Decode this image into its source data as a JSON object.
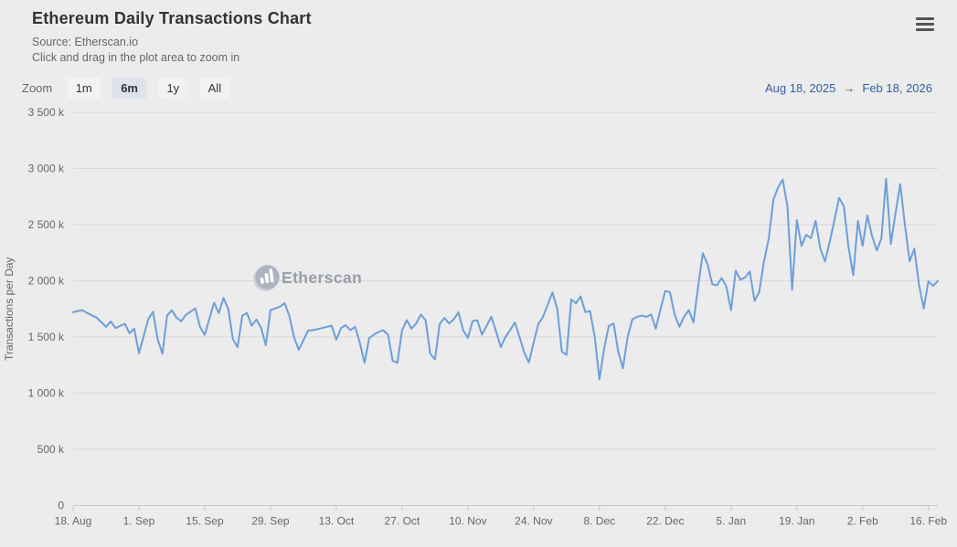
{
  "header": {
    "title": "Ethereum Daily Transactions Chart",
    "subtitle_source": "Source: Etherscan.io",
    "subtitle_hint": "Click and drag in the plot area to zoom in"
  },
  "controls": {
    "zoom_label": "Zoom",
    "buttons": [
      {
        "label": "1m",
        "selected": false
      },
      {
        "label": "6m",
        "selected": true
      },
      {
        "label": "1y",
        "selected": false
      },
      {
        "label": "All",
        "selected": false
      }
    ],
    "range": {
      "from": "Aug 18, 2025",
      "arrow": "→",
      "to": "Feb 18, 2026"
    }
  },
  "watermark": {
    "text": "Etherscan",
    "icon": "etherscan-logo-icon"
  },
  "colors": {
    "background": "#ececec",
    "line": "#6d9eda",
    "gridline": "#d9d9d9",
    "axis_line": "#c8c8c8",
    "range_date": "#35609f",
    "button_selected_bg": "#dce2ee",
    "button_bg": "#f2f2f2",
    "watermark": "#989ea9"
  },
  "chart_data": {
    "type": "line",
    "title": "Ethereum Daily Transactions Chart",
    "xlabel": "",
    "ylabel": "Transactions per Day",
    "x_start_date": "2025-08-18",
    "x_end_date": "2026-02-18",
    "x_span_days": 184,
    "ylim_k": [
      0,
      3500
    ],
    "y_unit": "k (thousands of transactions per day)",
    "grid": "horizontal gridlines only",
    "legend": "none",
    "y_ticks": [
      {
        "label": "0",
        "value_k": 0
      },
      {
        "label": "500 k",
        "value_k": 500
      },
      {
        "label": "1 000 k",
        "value_k": 1000
      },
      {
        "label": "1 500 k",
        "value_k": 1500
      },
      {
        "label": "2 000 k",
        "value_k": 2000
      },
      {
        "label": "2 500 k",
        "value_k": 2500
      },
      {
        "label": "3 000 k",
        "value_k": 3000
      },
      {
        "label": "3 500 k",
        "value_k": 3500
      }
    ],
    "x_ticks": [
      {
        "label": "18. Aug",
        "day": 0
      },
      {
        "label": "1. Sep",
        "day": 14
      },
      {
        "label": "15. Sep",
        "day": 28
      },
      {
        "label": "29. Sep",
        "day": 42
      },
      {
        "label": "13. Oct",
        "day": 56
      },
      {
        "label": "27. Oct",
        "day": 70
      },
      {
        "label": "10. Nov",
        "day": 84
      },
      {
        "label": "24. Nov",
        "day": 98
      },
      {
        "label": "8. Dec",
        "day": 112
      },
      {
        "label": "22. Dec",
        "day": 126
      },
      {
        "label": "5. Jan",
        "day": 140
      },
      {
        "label": "19. Jan",
        "day": 154
      },
      {
        "label": "2. Feb",
        "day": 168
      },
      {
        "label": "16. Feb",
        "day": 182
      }
    ],
    "series": [
      {
        "name": "Transactions per Day",
        "color": "#6d9eda",
        "x_unit": "days since 2025-08-18",
        "points_day_valueK": [
          [
            0,
            1720
          ],
          [
            1,
            1732
          ],
          [
            2,
            1738
          ],
          [
            3,
            1713
          ],
          [
            5,
            1672
          ],
          [
            7,
            1590
          ],
          [
            8,
            1638
          ],
          [
            9,
            1580
          ],
          [
            11,
            1618
          ],
          [
            12,
            1533
          ],
          [
            13,
            1574
          ],
          [
            14,
            1355
          ],
          [
            16,
            1660
          ],
          [
            17,
            1724
          ],
          [
            18,
            1480
          ],
          [
            19,
            1350
          ],
          [
            20,
            1690
          ],
          [
            21,
            1738
          ],
          [
            22,
            1672
          ],
          [
            23,
            1640
          ],
          [
            24,
            1697
          ],
          [
            26,
            1754
          ],
          [
            27,
            1590
          ],
          [
            28,
            1519
          ],
          [
            30,
            1806
          ],
          [
            31,
            1713
          ],
          [
            32,
            1847
          ],
          [
            33,
            1750
          ],
          [
            34,
            1480
          ],
          [
            35,
            1410
          ],
          [
            36,
            1690
          ],
          [
            37,
            1713
          ],
          [
            38,
            1600
          ],
          [
            39,
            1656
          ],
          [
            40,
            1580
          ],
          [
            41,
            1426
          ],
          [
            42,
            1738
          ],
          [
            44,
            1770
          ],
          [
            45,
            1800
          ],
          [
            46,
            1690
          ],
          [
            47,
            1500
          ],
          [
            48,
            1385
          ],
          [
            50,
            1557
          ],
          [
            51,
            1560
          ],
          [
            53,
            1580
          ],
          [
            55,
            1600
          ],
          [
            56,
            1475
          ],
          [
            57,
            1580
          ],
          [
            58,
            1605
          ],
          [
            59,
            1560
          ],
          [
            60,
            1590
          ],
          [
            61,
            1450
          ],
          [
            62,
            1270
          ],
          [
            63,
            1490
          ],
          [
            64,
            1520
          ],
          [
            65,
            1545
          ],
          [
            66,
            1560
          ],
          [
            67,
            1520
          ],
          [
            68,
            1287
          ],
          [
            69,
            1270
          ],
          [
            70,
            1560
          ],
          [
            71,
            1650
          ],
          [
            72,
            1574
          ],
          [
            73,
            1620
          ],
          [
            74,
            1700
          ],
          [
            75,
            1650
          ],
          [
            76,
            1352
          ],
          [
            77,
            1300
          ],
          [
            78,
            1615
          ],
          [
            79,
            1670
          ],
          [
            80,
            1620
          ],
          [
            81,
            1656
          ],
          [
            82,
            1720
          ],
          [
            83,
            1560
          ],
          [
            84,
            1492
          ],
          [
            85,
            1640
          ],
          [
            86,
            1650
          ],
          [
            87,
            1520
          ],
          [
            88,
            1600
          ],
          [
            89,
            1680
          ],
          [
            90,
            1550
          ],
          [
            91,
            1410
          ],
          [
            92,
            1500
          ],
          [
            93,
            1560
          ],
          [
            94,
            1630
          ],
          [
            95,
            1500
          ],
          [
            96,
            1360
          ],
          [
            97,
            1273
          ],
          [
            98,
            1450
          ],
          [
            99,
            1615
          ],
          [
            100,
            1680
          ],
          [
            101,
            1790
          ],
          [
            102,
            1896
          ],
          [
            103,
            1754
          ],
          [
            104,
            1369
          ],
          [
            105,
            1340
          ],
          [
            106,
            1836
          ],
          [
            107,
            1800
          ],
          [
            108,
            1861
          ],
          [
            109,
            1721
          ],
          [
            110,
            1730
          ],
          [
            111,
            1500
          ],
          [
            112,
            1123
          ],
          [
            113,
            1400
          ],
          [
            114,
            1598
          ],
          [
            115,
            1620
          ],
          [
            116,
            1369
          ],
          [
            117,
            1221
          ],
          [
            118,
            1500
          ],
          [
            119,
            1656
          ],
          [
            120,
            1680
          ],
          [
            121,
            1690
          ],
          [
            122,
            1680
          ],
          [
            123,
            1700
          ],
          [
            124,
            1574
          ],
          [
            125,
            1750
          ],
          [
            126,
            1910
          ],
          [
            127,
            1900
          ],
          [
            128,
            1700
          ],
          [
            129,
            1590
          ],
          [
            130,
            1680
          ],
          [
            131,
            1740
          ],
          [
            132,
            1630
          ],
          [
            133,
            1950
          ],
          [
            134,
            2246
          ],
          [
            135,
            2148
          ],
          [
            136,
            1970
          ],
          [
            137,
            1959
          ],
          [
            138,
            2025
          ],
          [
            139,
            1950
          ],
          [
            140,
            1738
          ],
          [
            141,
            2090
          ],
          [
            142,
            2008
          ],
          [
            143,
            2030
          ],
          [
            144,
            2082
          ],
          [
            145,
            1820
          ],
          [
            146,
            1900
          ],
          [
            147,
            2172
          ],
          [
            148,
            2369
          ],
          [
            149,
            2721
          ],
          [
            150,
            2830
          ],
          [
            151,
            2902
          ],
          [
            152,
            2664
          ],
          [
            153,
            1920
          ],
          [
            154,
            2541
          ],
          [
            155,
            2311
          ],
          [
            156,
            2410
          ],
          [
            157,
            2380
          ],
          [
            158,
            2533
          ],
          [
            159,
            2287
          ],
          [
            160,
            2172
          ],
          [
            161,
            2350
          ],
          [
            162,
            2541
          ],
          [
            163,
            2738
          ],
          [
            164,
            2664
          ],
          [
            165,
            2300
          ],
          [
            166,
            2050
          ],
          [
            167,
            2533
          ],
          [
            168,
            2311
          ],
          [
            169,
            2582
          ],
          [
            170,
            2400
          ],
          [
            171,
            2270
          ],
          [
            172,
            2377
          ],
          [
            173,
            2910
          ],
          [
            174,
            2328
          ],
          [
            175,
            2600
          ],
          [
            176,
            2861
          ],
          [
            177,
            2500
          ],
          [
            178,
            2172
          ],
          [
            179,
            2287
          ],
          [
            180,
            1967
          ],
          [
            181,
            1754
          ],
          [
            182,
            1995
          ],
          [
            183,
            1955
          ],
          [
            184,
            2000
          ]
        ]
      }
    ]
  }
}
